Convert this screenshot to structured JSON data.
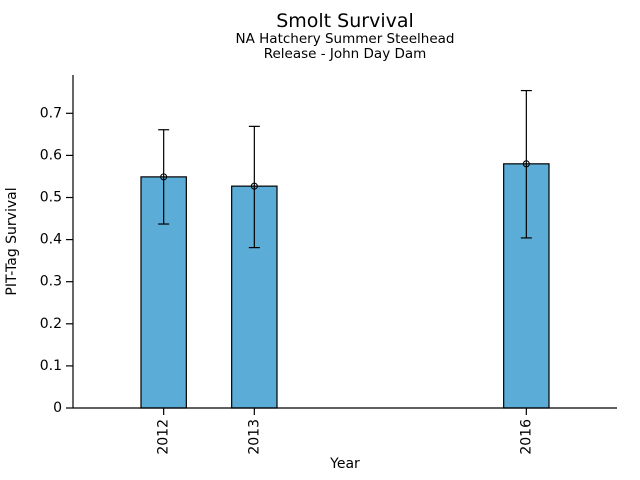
{
  "chart_data": {
    "type": "bar",
    "title": "Smolt Survival",
    "subtitle_line1": "NA Hatchery Summer Steelhead",
    "subtitle_line2": "Release - John Day Dam",
    "xlabel": "Year",
    "ylabel": "PIT-Tag Survival",
    "categories": [
      2012,
      2013,
      2016
    ],
    "xtick_labels": [
      "2012",
      "2013",
      "2016"
    ],
    "values": [
      0.549,
      0.527,
      0.58
    ],
    "error_low": [
      0.437,
      0.381,
      0.404
    ],
    "error_high": [
      0.661,
      0.669,
      0.754
    ],
    "xlim": [
      2011,
      2017
    ],
    "ylim": [
      0,
      0.791
    ],
    "yticks": [
      0,
      0.1,
      0.2,
      0.3,
      0.4,
      0.5,
      0.6,
      0.7
    ],
    "ytick_labels": [
      "0",
      "0.1",
      "0.2",
      "0.3",
      "0.4",
      "0.5",
      "0.6",
      "0.7"
    ],
    "bar_width_years": 0.5,
    "bar_color": "#5BACD6",
    "bar_edge_color": "#000000",
    "error_color": "#000000",
    "marker": "open-circle",
    "grid": false,
    "legend": false,
    "xtick_rotation_deg": 90
  }
}
